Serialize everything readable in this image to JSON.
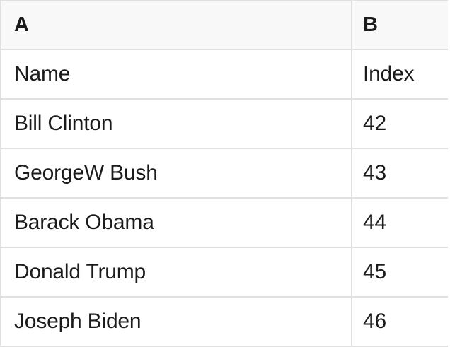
{
  "spreadsheet": {
    "column_headers": [
      "A",
      "B"
    ],
    "rows": [
      {
        "a": "Name",
        "b": "Index"
      },
      {
        "a": "Bill Clinton",
        "b": "42"
      },
      {
        "a": "GeorgeW Bush",
        "b": "43"
      },
      {
        "a": "Barack Obama",
        "b": "44"
      },
      {
        "a": "Donald Trump",
        "b": "45"
      },
      {
        "a": "Joseph Biden",
        "b": "46"
      }
    ]
  },
  "colors": {
    "header_bg": "#f8f8f8",
    "border": "#e0e0e0",
    "text": "#1b1b1b",
    "cell_bg": "#ffffff",
    "page_bg": "#ffffff"
  }
}
